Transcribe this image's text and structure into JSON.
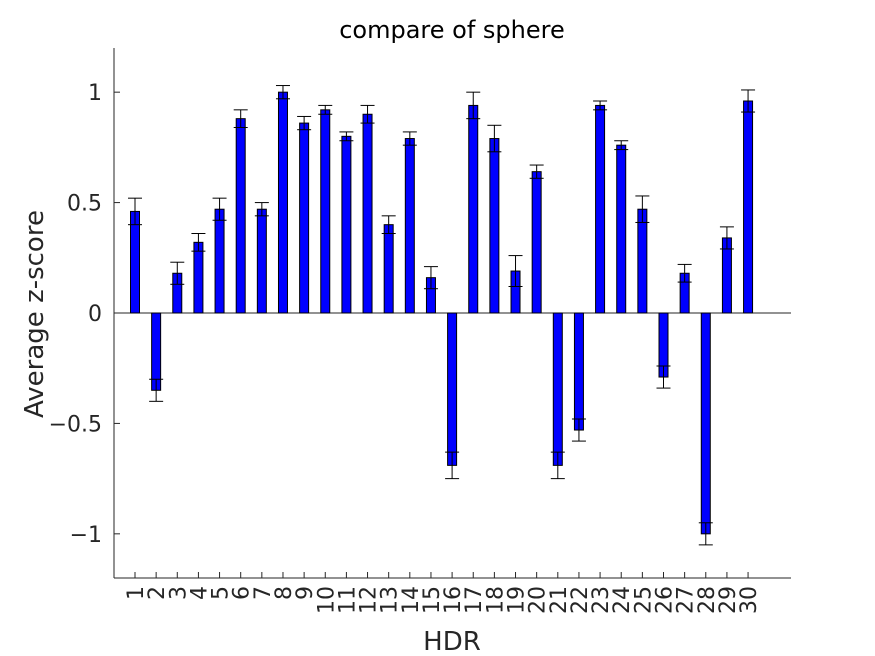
{
  "chart_data": {
    "type": "bar",
    "title": "compare of sphere",
    "xlabel": "HDR",
    "ylabel": "Average z-score",
    "ylim": [
      -1.2,
      1.2
    ],
    "yticks": [
      -1,
      -0.5,
      0,
      0.5,
      1
    ],
    "ytick_labels": [
      "−1",
      "−0.5",
      "0",
      "0.5",
      "1"
    ],
    "categories": [
      "1",
      "2",
      "3",
      "4",
      "5",
      "6",
      "7",
      "8",
      "9",
      "10",
      "11",
      "12",
      "13",
      "14",
      "15",
      "16",
      "17",
      "18",
      "19",
      "20",
      "21",
      "22",
      "23",
      "24",
      "25",
      "26",
      "27",
      "28",
      "29",
      "30"
    ],
    "values": [
      0.46,
      -0.35,
      0.18,
      0.32,
      0.47,
      0.88,
      0.47,
      1.0,
      0.86,
      0.92,
      0.8,
      0.9,
      0.4,
      0.79,
      0.16,
      -0.69,
      0.94,
      0.79,
      0.19,
      0.64,
      -0.69,
      -0.53,
      0.94,
      0.76,
      0.47,
      -0.29,
      0.18,
      -1.0,
      0.34,
      0.96
    ],
    "errors": [
      0.06,
      0.05,
      0.05,
      0.04,
      0.05,
      0.04,
      0.03,
      0.03,
      0.03,
      0.02,
      0.02,
      0.04,
      0.04,
      0.03,
      0.05,
      0.06,
      0.06,
      0.06,
      0.07,
      0.03,
      0.06,
      0.05,
      0.02,
      0.02,
      0.06,
      0.05,
      0.04,
      0.05,
      0.05,
      0.05
    ],
    "bar_color": "#0000ff",
    "axis_color": "#262626",
    "grid": false
  }
}
